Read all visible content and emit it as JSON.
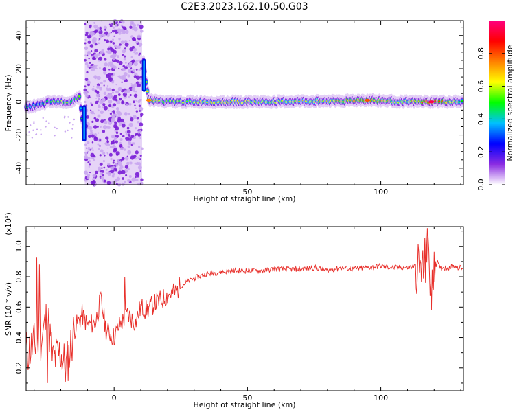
{
  "figure_title": "C2E3.2023.162.10.50.G03",
  "chart_data": [
    {
      "type": "heatmap",
      "xlabel": "Height of straight line (km)",
      "ylabel": "Frequency (Hz)",
      "xlim": [
        -33,
        131
      ],
      "ylim": [
        -50,
        49
      ],
      "x_ticks": [
        0,
        50,
        100
      ],
      "y_ticks": [
        -40,
        -20,
        0,
        20,
        40
      ],
      "colorbar": {
        "label": "Normalized spectral amplitude",
        "range": [
          0,
          1
        ],
        "ticks": [
          0.0,
          0.2,
          0.4,
          0.6,
          0.8
        ],
        "tick_labels": [
          "0.0",
          "0.2",
          "0.4",
          "0.6",
          "0.8"
        ],
        "colormap": [
          "#ffffff",
          "#8a2be2",
          "#0000ff",
          "#00c0ff",
          "#00ff00",
          "#ffff00",
          "#ff8000",
          "#ff0000",
          "#ff0080"
        ]
      },
      "noise_band_x": [
        -11,
        10.5
      ],
      "ridge": [
        {
          "x": -33,
          "freq": -3,
          "amp": 0.45
        },
        {
          "x": -28,
          "freq": -2,
          "amp": 0.4
        },
        {
          "x": -24,
          "freq": 0,
          "amp": 0.5
        },
        {
          "x": -20,
          "freq": 0,
          "amp": 0.55
        },
        {
          "x": -16,
          "freq": 0,
          "amp": 0.55
        },
        {
          "x": -13,
          "freq": 3,
          "amp": 0.5
        },
        {
          "x": -11,
          "freq": -22,
          "amp": 0.35
        },
        {
          "x": 11,
          "freq": 24,
          "amp": 0.35
        },
        {
          "x": 13,
          "freq": 1,
          "amp": 0.75
        },
        {
          "x": 20,
          "freq": 0,
          "amp": 0.55
        },
        {
          "x": 40,
          "freq": 0,
          "amp": 0.65
        },
        {
          "x": 60,
          "freq": 0,
          "amp": 0.6
        },
        {
          "x": 80,
          "freq": 0.5,
          "amp": 0.65
        },
        {
          "x": 95,
          "freq": 1,
          "amp": 0.8
        },
        {
          "x": 110,
          "freq": 0,
          "amp": 0.6
        },
        {
          "x": 119,
          "freq": 0,
          "amp": 0.95
        },
        {
          "x": 131,
          "freq": 0,
          "amp": 0.55
        }
      ]
    },
    {
      "type": "line",
      "xlabel": "Height of straight line (km)",
      "ylabel": "SNR (10 * v/v)",
      "y_multiplier_label": "(x10",
      "y_multiplier_exp": "4",
      "y_multiplier_close": ")",
      "xlim": [
        -33,
        131
      ],
      "ylim": [
        0.05,
        1.13
      ],
      "x_ticks": [
        0,
        50,
        100
      ],
      "y_ticks": [
        0.2,
        0.4,
        0.6,
        0.8,
        1.0
      ],
      "color": "#e8302b",
      "series": [
        {
          "x": [
            -33,
            -30,
            -27,
            -25,
            -23,
            -20,
            -18,
            -15,
            -12,
            -10,
            -7,
            -5,
            -3,
            0,
            2,
            5,
            8,
            10,
            12,
            15,
            18,
            20,
            23,
            25,
            28,
            30,
            35,
            40,
            45,
            50,
            55,
            60,
            65,
            70,
            75,
            80,
            85,
            90,
            95,
            100,
            105,
            110,
            113,
            116,
            118,
            119,
            120,
            122,
            125,
            128,
            131
          ],
          "y": [
            0.3,
            0.35,
            0.4,
            0.55,
            0.25,
            0.3,
            0.2,
            0.45,
            0.55,
            0.48,
            0.5,
            0.65,
            0.45,
            0.4,
            0.48,
            0.55,
            0.5,
            0.6,
            0.58,
            0.62,
            0.65,
            0.68,
            0.7,
            0.74,
            0.77,
            0.79,
            0.82,
            0.83,
            0.84,
            0.84,
            0.84,
            0.85,
            0.85,
            0.85,
            0.86,
            0.84,
            0.86,
            0.85,
            0.86,
            0.87,
            0.86,
            0.86,
            0.87,
            0.84,
            1.0,
            0.6,
            0.95,
            0.86,
            0.86,
            0.87,
            0.85
          ]
        }
      ],
      "spikes": [
        {
          "x": -29,
          "y": 0.93
        },
        {
          "x": -28,
          "y": 0.88
        },
        {
          "x": -25,
          "y": 0.1
        },
        {
          "x": 4,
          "y": 0.8
        },
        {
          "x": 117,
          "y": 1.12
        },
        {
          "x": 119,
          "y": 0.58
        }
      ]
    }
  ]
}
